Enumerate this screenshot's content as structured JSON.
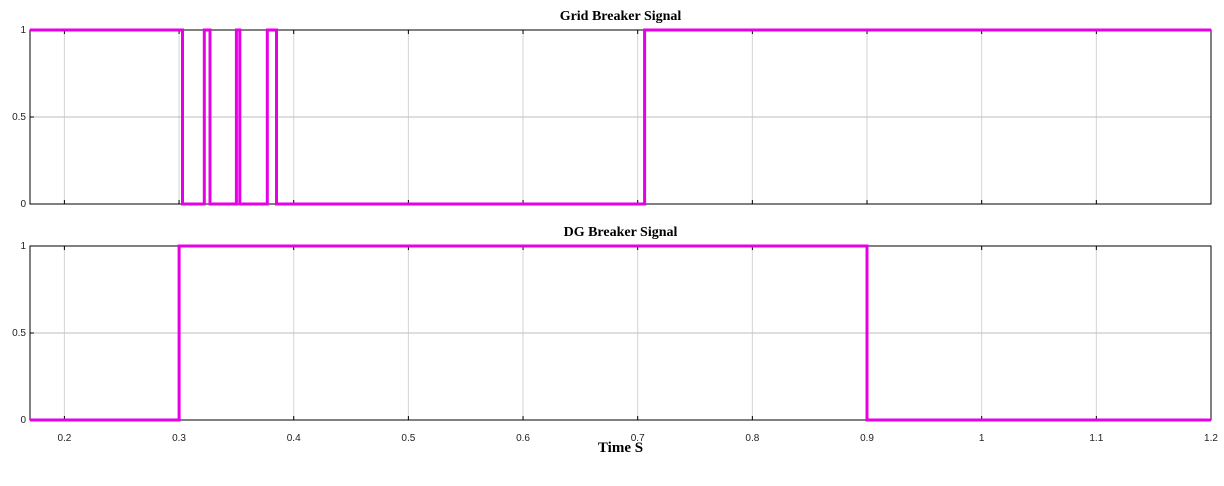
{
  "chart_data": [
    {
      "type": "line",
      "title": "Grid Breaker Signal",
      "xlabel": "",
      "ylabel": "",
      "xlim": [
        0.17,
        1.2
      ],
      "ylim": [
        0,
        1
      ],
      "yticks": [
        0,
        0.5,
        1
      ],
      "ytick_labels": [
        "0",
        "0.5",
        "1"
      ],
      "grid": true,
      "line_color": "#e600e6",
      "series": [
        {
          "step": true,
          "points": [
            [
              0.17,
              1
            ],
            [
              0.303,
              1
            ],
            [
              0.303,
              0
            ],
            [
              0.322,
              0
            ],
            [
              0.322,
              1
            ],
            [
              0.327,
              1
            ],
            [
              0.327,
              0
            ],
            [
              0.35,
              0
            ],
            [
              0.35,
              1
            ],
            [
              0.353,
              1
            ],
            [
              0.353,
              0
            ],
            [
              0.377,
              0
            ],
            [
              0.377,
              1
            ],
            [
              0.385,
              1
            ],
            [
              0.385,
              0
            ],
            [
              0.706,
              0
            ],
            [
              0.706,
              1
            ],
            [
              1.2,
              1
            ]
          ]
        }
      ]
    },
    {
      "type": "line",
      "title": "DG Breaker Signal",
      "xlabel": "Time S",
      "ylabel": "",
      "xlim": [
        0.17,
        1.2
      ],
      "ylim": [
        0,
        1
      ],
      "yticks": [
        0,
        0.5,
        1
      ],
      "ytick_labels": [
        "0",
        "0.5",
        "1"
      ],
      "xticks": [
        0.2,
        0.3,
        0.4,
        0.5,
        0.6,
        0.7,
        0.8,
        0.9,
        1,
        1.1,
        1.2
      ],
      "xtick_labels": [
        "0.2",
        "0.3",
        "0.4",
        "0.5",
        "0.6",
        "0.7",
        "0.8",
        "0.9",
        "1",
        "1.1",
        "1.2"
      ],
      "grid": true,
      "line_color": "#e600e6",
      "series": [
        {
          "step": true,
          "points": [
            [
              0.17,
              0
            ],
            [
              0.3,
              0
            ],
            [
              0.3,
              1
            ],
            [
              0.9,
              1
            ],
            [
              0.9,
              0
            ],
            [
              1.2,
              0
            ]
          ]
        }
      ]
    }
  ]
}
